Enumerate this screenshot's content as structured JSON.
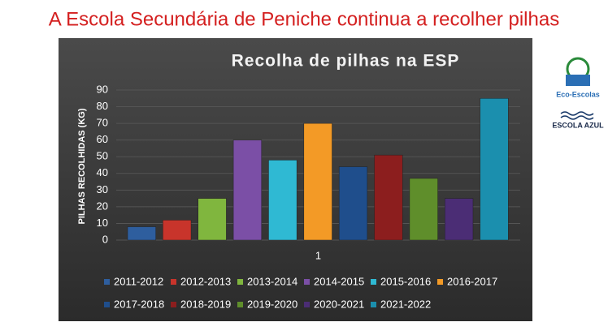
{
  "header": {
    "title": "A Escola Secundária de Peniche continua a recolher pilhas"
  },
  "chart_data": {
    "type": "bar",
    "title": "Recolha de pilhas na ESP",
    "y_label": "PILHAS RECOLHIDAS (KG)",
    "categories": [
      "1"
    ],
    "series": [
      {
        "name": "2011-2012",
        "color": "#2e5e9e",
        "values": [
          8
        ]
      },
      {
        "name": "2012-2013",
        "color": "#c8342b",
        "values": [
          12
        ]
      },
      {
        "name": "2013-2014",
        "color": "#80b63e",
        "values": [
          25
        ]
      },
      {
        "name": "2014-2015",
        "color": "#7b4fa6",
        "values": [
          60
        ]
      },
      {
        "name": "2015-2016",
        "color": "#2fb9d3",
        "values": [
          48
        ]
      },
      {
        "name": "2016-2017",
        "color": "#f39a26",
        "values": [
          70
        ]
      },
      {
        "name": "2017-2018",
        "color": "#1f4e8c",
        "values": [
          44
        ]
      },
      {
        "name": "2018-2019",
        "color": "#8c1e1e",
        "values": [
          51
        ]
      },
      {
        "name": "2019-2020",
        "color": "#5f8e2b",
        "values": [
          37
        ]
      },
      {
        "name": "2020-2021",
        "color": "#4b2d75",
        "values": [
          25
        ]
      },
      {
        "name": "2021-2022",
        "color": "#1b8fae",
        "values": [
          85
        ]
      }
    ],
    "ylim": [
      0,
      90
    ],
    "yticks": [
      0,
      10,
      20,
      30,
      40,
      50,
      60,
      70,
      80,
      90
    ],
    "grid": true
  },
  "logos": {
    "eco": "Eco-Escolas",
    "azul": "ESCOLA AZUL"
  }
}
